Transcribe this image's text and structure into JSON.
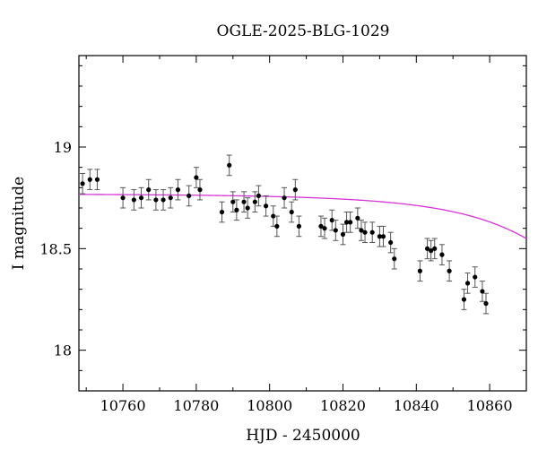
{
  "chart_data": {
    "type": "scatter",
    "title": "OGLE-2025-BLG-1029",
    "xlabel": "HJD - 2450000",
    "ylabel": "I magnitude",
    "xlim": [
      10748,
      10870
    ],
    "ylim": [
      19.45,
      17.8
    ],
    "y_inverted": true,
    "grid": false,
    "x_ticks": [
      10760,
      10780,
      10800,
      10820,
      10840,
      10860
    ],
    "x_tick_labels": [
      "10760",
      "10780",
      "10800",
      "10820",
      "10840",
      "10860"
    ],
    "y_ticks": [
      18,
      18.5,
      19
    ],
    "y_tick_labels": [
      "18",
      "18.5",
      "19"
    ],
    "series": [
      {
        "marker": "filled-circle",
        "color": "#000000",
        "x": [
          10749,
          10751,
          10753,
          10760,
          10763,
          10765,
          10767,
          10769,
          10771,
          10773,
          10775,
          10778,
          10780,
          10781,
          10787,
          10789,
          10790,
          10791,
          10793,
          10794,
          10796,
          10797,
          10799,
          10801,
          10802,
          10804,
          10806,
          10807,
          10808,
          10814,
          10815,
          10817,
          10818,
          10820,
          10821,
          10822,
          10824,
          10825,
          10826,
          10828,
          10830,
          10831,
          10833,
          10834,
          10841,
          10843,
          10844,
          10845,
          10847,
          10849,
          10853,
          10854,
          10856,
          10858,
          10859
        ],
        "y": [
          18.82,
          18.84,
          18.84,
          18.75,
          18.74,
          18.75,
          18.79,
          18.74,
          18.74,
          18.75,
          18.79,
          18.76,
          18.85,
          18.79,
          18.68,
          18.91,
          18.73,
          18.69,
          18.73,
          18.7,
          18.73,
          18.76,
          18.71,
          18.66,
          18.61,
          18.75,
          18.68,
          18.79,
          18.61,
          18.61,
          18.6,
          18.64,
          18.59,
          18.57,
          18.63,
          18.63,
          18.65,
          18.59,
          18.58,
          18.58,
          18.56,
          18.56,
          18.53,
          18.45,
          18.39,
          18.5,
          18.49,
          18.5,
          18.47,
          18.39,
          18.25,
          18.33,
          18.36,
          18.29,
          18.23
        ],
        "yerr": 0.05
      }
    ],
    "model_curve": {
      "color": "#d633d6",
      "baseline_mag": 18.77,
      "t0": 10895,
      "tE": 38,
      "u0": 0.45,
      "fs": 0.42
    }
  }
}
